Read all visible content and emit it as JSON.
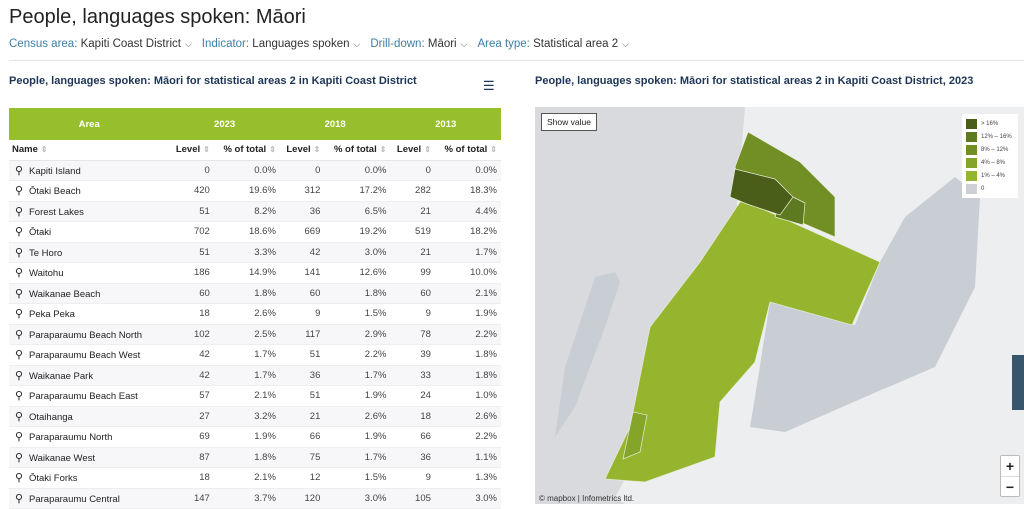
{
  "title": "People, languages spoken: Māori",
  "filters": [
    {
      "key": "Census area:",
      "value": "Kapiti Coast District"
    },
    {
      "key": "Indicator:",
      "value": "Languages spoken"
    },
    {
      "key": "Drill-down:",
      "value": "Māori"
    },
    {
      "key": "Area type:",
      "value": "Statistical area 2"
    }
  ],
  "table": {
    "subtitle": "People, languages spoken: Māori for statistical areas 2 in Kapiti Coast District",
    "groups": [
      "Area",
      "2023",
      "2018",
      "2013"
    ],
    "columns": [
      "Name",
      "Level",
      "% of total",
      "Level",
      "% of total",
      "Level",
      "% of total"
    ],
    "rows": [
      [
        "Kapiti Island",
        "0",
        "0.0%",
        "0",
        "0.0%",
        "0",
        "0.0%"
      ],
      [
        "Ōtaki Beach",
        "420",
        "19.6%",
        "312",
        "17.2%",
        "282",
        "18.3%"
      ],
      [
        "Forest Lakes",
        "51",
        "8.2%",
        "36",
        "6.5%",
        "21",
        "4.4%"
      ],
      [
        "Ōtaki",
        "702",
        "18.6%",
        "669",
        "19.2%",
        "519",
        "18.2%"
      ],
      [
        "Te Horo",
        "51",
        "3.3%",
        "42",
        "3.0%",
        "21",
        "1.7%"
      ],
      [
        "Waitohu",
        "186",
        "14.9%",
        "141",
        "12.6%",
        "99",
        "10.0%"
      ],
      [
        "Waikanae Beach",
        "60",
        "1.8%",
        "60",
        "1.8%",
        "60",
        "2.1%"
      ],
      [
        "Peka Peka",
        "18",
        "2.6%",
        "9",
        "1.5%",
        "9",
        "1.9%"
      ],
      [
        "Paraparaumu Beach North",
        "102",
        "2.5%",
        "117",
        "2.9%",
        "78",
        "2.2%"
      ],
      [
        "Paraparaumu Beach West",
        "42",
        "1.7%",
        "51",
        "2.2%",
        "39",
        "1.8%"
      ],
      [
        "Waikanae Park",
        "42",
        "1.7%",
        "36",
        "1.7%",
        "33",
        "1.8%"
      ],
      [
        "Paraparaumu Beach East",
        "57",
        "2.1%",
        "51",
        "1.9%",
        "24",
        "1.0%"
      ],
      [
        "Otaihanga",
        "27",
        "3.2%",
        "21",
        "2.6%",
        "18",
        "2.6%"
      ],
      [
        "Paraparaumu North",
        "69",
        "1.9%",
        "66",
        "1.9%",
        "66",
        "2.2%"
      ],
      [
        "Waikanae West",
        "87",
        "1.8%",
        "75",
        "1.7%",
        "36",
        "1.1%"
      ],
      [
        "Ōtaki Forks",
        "18",
        "2.1%",
        "12",
        "1.5%",
        "9",
        "1.3%"
      ],
      [
        "Paraparaumu Central",
        "147",
        "3.7%",
        "120",
        "3.0%",
        "105",
        "3.0%"
      ]
    ]
  },
  "map": {
    "subtitle": "People, languages spoken: Māori for statistical areas 2 in Kapiti Coast District, 2023",
    "show_value": "Show value",
    "legend": [
      {
        "label": "> 16%",
        "color": "#4a5e1a"
      },
      {
        "label": "12% – 16%",
        "color": "#5e7a20"
      },
      {
        "label": "8% – 12%",
        "color": "#728f25"
      },
      {
        "label": "4% – 8%",
        "color": "#84a42a"
      },
      {
        "label": "1% – 4%",
        "color": "#96b52f"
      },
      {
        "label": "0",
        "color": "#cdd1d6"
      }
    ],
    "attribution": "© mapbox | Infometrics ltd.",
    "zoom_in": "+",
    "zoom_out": "−"
  }
}
